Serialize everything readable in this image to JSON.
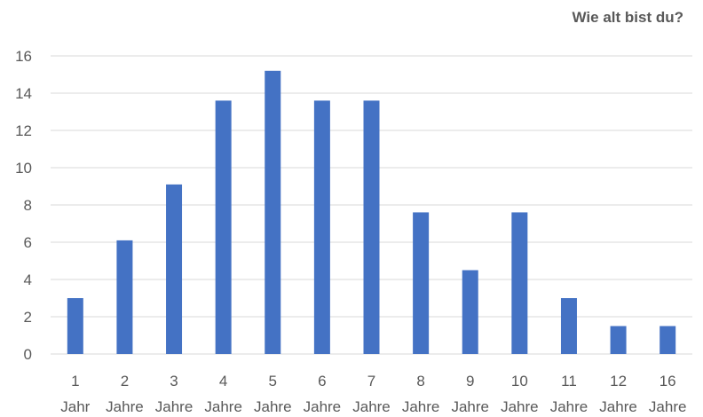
{
  "chart_data": {
    "type": "bar",
    "title": "Wie alt bist du?",
    "categories": [
      [
        "1",
        "Jahr"
      ],
      [
        "2",
        "Jahre"
      ],
      [
        "3",
        "Jahre"
      ],
      [
        "4",
        "Jahre"
      ],
      [
        "5",
        "Jahre"
      ],
      [
        "6",
        "Jahre"
      ],
      [
        "7",
        "Jahre"
      ],
      [
        "8",
        "Jahre"
      ],
      [
        "9",
        "Jahre"
      ],
      [
        "10",
        "Jahre"
      ],
      [
        "11",
        "Jahre"
      ],
      [
        "12",
        "Jahre"
      ],
      [
        "16",
        "Jahre"
      ]
    ],
    "values": [
      3.0,
      6.1,
      9.1,
      13.6,
      15.2,
      13.6,
      13.6,
      7.6,
      4.5,
      7.6,
      3.0,
      1.5,
      1.5
    ],
    "ylim": [
      0,
      16
    ],
    "yticks": [
      0,
      2,
      4,
      6,
      8,
      10,
      12,
      14,
      16
    ],
    "grid": true,
    "bar_color": "#4472C4",
    "grid_color": "#d9d9d9",
    "text_color": "#595959"
  }
}
